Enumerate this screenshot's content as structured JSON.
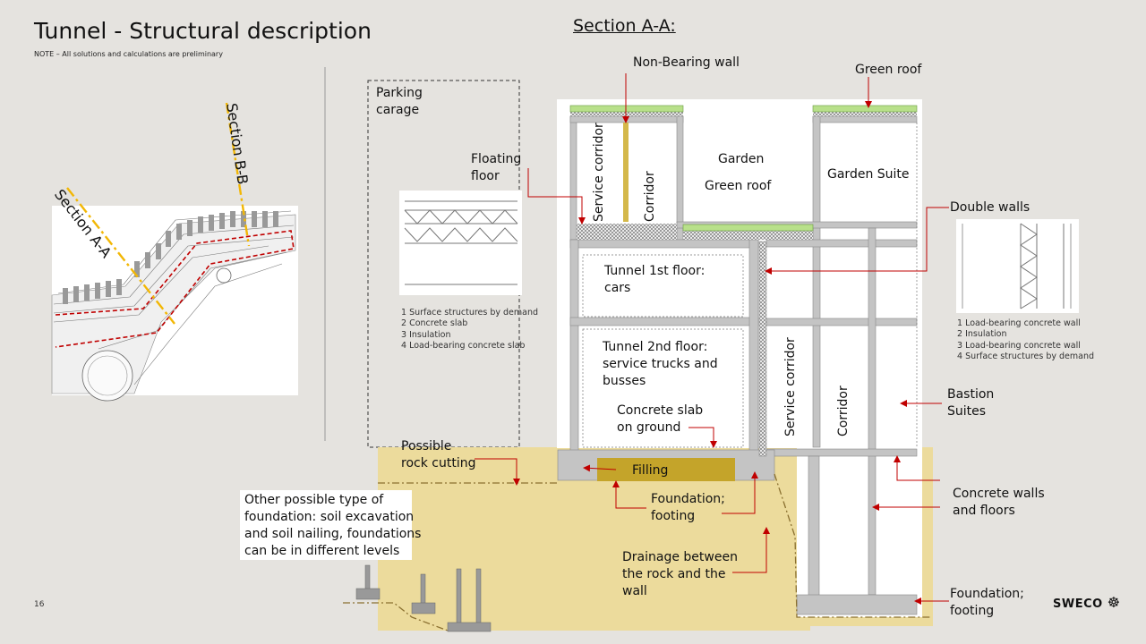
{
  "header": {
    "title": "Tunnel - Structural description",
    "note": "NOTE – All solutions and calculations are preliminary",
    "section_title": "Section A-A:"
  },
  "map": {
    "section_aa_label": "Section A-A",
    "section_bb_label": "Section B-B"
  },
  "parking": {
    "label_line1": "Parking",
    "label_line2": "carage",
    "legend": [
      "1 Surface structures by demand",
      "2 Concrete slab",
      "3 Insulation",
      "4  Load-bearing concrete slab"
    ]
  },
  "doublewall": {
    "legend": [
      "1 Load-bearing concrete wall",
      "2 Insulation",
      "3 Load-bearing concrete wall",
      "4 Surface structures by demand"
    ]
  },
  "labels": {
    "non_bearing_wall": "Non-Bearing wall",
    "green_roof_top": "Green roof",
    "floating_floor_1": "Floating",
    "floating_floor_2": "floor",
    "service_corridor_upper": "Service corridor",
    "corridor_upper": "Corridor",
    "garden": "Garden",
    "green_roof_mid": "Green roof",
    "garden_suite": "Garden Suite",
    "double_walls": "Double walls",
    "tunnel_1st_1": "Tunnel 1st floor:",
    "tunnel_1st_2": "cars",
    "tunnel_2nd_1": "Tunnel 2nd floor:",
    "tunnel_2nd_2": "service trucks and",
    "tunnel_2nd_3": "busses",
    "concrete_slab_1": "Concrete slab",
    "concrete_slab_2": "on ground",
    "service_corridor_lower": "Service corridor",
    "corridor_lower": "Corridor",
    "bastion_1": "Bastion",
    "bastion_2": "Suites",
    "rock_1": "Possible",
    "rock_2": "rock cutting",
    "filling": "Filling",
    "foundation_mid_1": "Foundation;",
    "foundation_mid_2": "footing",
    "concrete_walls_1": "Concrete walls",
    "concrete_walls_2": "and floors",
    "other_1": "Other possible type of",
    "other_2": "foundation: soil excavation",
    "other_3": "and soil nailing, foundations",
    "other_4": "can be in different levels",
    "drainage_1": "Drainage between",
    "drainage_2": "the rock and the",
    "drainage_3": "wall",
    "foundation_right_1": "Foundation;",
    "foundation_right_2": "footing"
  },
  "footer": {
    "page": "16",
    "logo": "SWECO"
  },
  "colors": {
    "background": "#e5e3df",
    "soil": "#ecdb9c",
    "concrete": "#c4c4c4",
    "green": "#b8e08a",
    "arrow": "#c00000",
    "filling": "#c4a42a",
    "section_line": "#f2b705"
  }
}
